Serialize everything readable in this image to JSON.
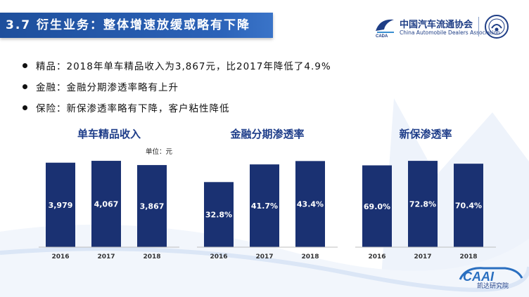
{
  "slide": {
    "title": "3.7 衍生业务：整体增速放缓或略有下降",
    "accent_color": "#1f3e8a",
    "bar_color": "#1a3172"
  },
  "logo": {
    "name_cn": "中国汽车流通协会",
    "name_en": "China Automobile Dealers Association"
  },
  "bullets": [
    "精品：2018年单车精品收入为3,867元，比2017年降低了4.9%",
    "金融：金融分期渗透率略有上升",
    "保险：新保渗透率略有下降，客户粘性降低"
  ],
  "chart_data": [
    {
      "type": "bar",
      "title": "单车精品收入",
      "unit_label": "单位：元",
      "categories": [
        "2016",
        "2017",
        "2018"
      ],
      "values": [
        3979,
        4067,
        3867
      ],
      "labels": [
        "3,979",
        "4,067",
        "3,867"
      ],
      "ylim": [
        0,
        4300
      ]
    },
    {
      "type": "bar",
      "title": "金融分期渗透率",
      "categories": [
        "2016",
        "2017",
        "2018"
      ],
      "values": [
        32.8,
        41.7,
        43.4
      ],
      "labels": [
        "32.8%",
        "41.7%",
        "43.4%"
      ],
      "ylim": [
        0,
        46
      ]
    },
    {
      "type": "bar",
      "title": "新保渗透率",
      "categories": [
        "2016",
        "2017",
        "2018"
      ],
      "values": [
        69.0,
        72.8,
        70.4
      ],
      "labels": [
        "69.0%",
        "72.8%",
        "70.4%"
      ],
      "ylim": [
        0,
        77
      ]
    }
  ],
  "footer": {
    "brand": "凯达研究院"
  }
}
